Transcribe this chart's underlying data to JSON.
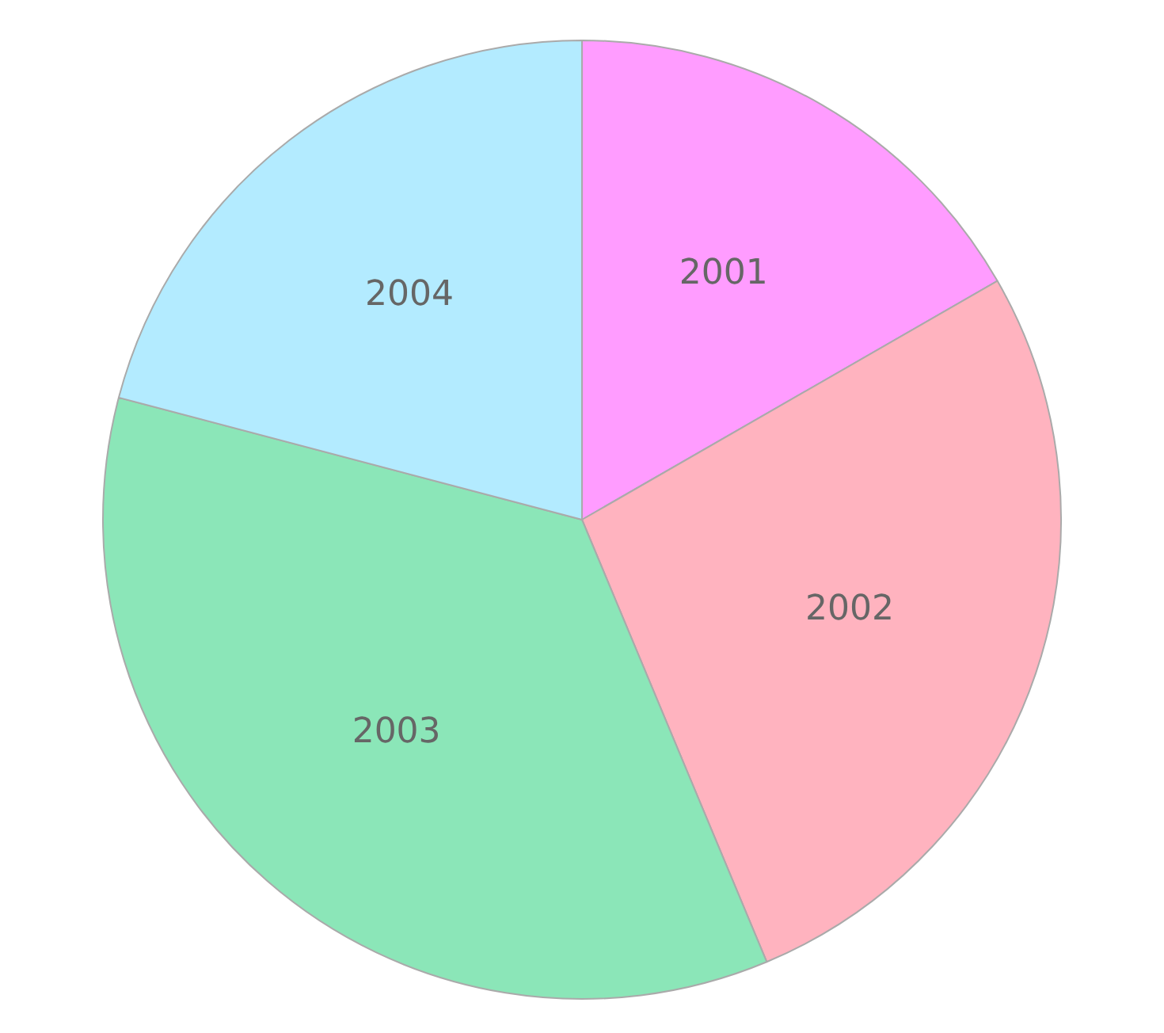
{
  "chart_data": {
    "type": "pie",
    "categories": [
      "2001",
      "2002",
      "2003",
      "2004"
    ],
    "values": [
      16.7,
      27.0,
      35.4,
      20.9
    ],
    "colors": [
      "#ff9cff",
      "#ffb3bf",
      "#8be6b8",
      "#b3ebff"
    ],
    "legend": false
  }
}
